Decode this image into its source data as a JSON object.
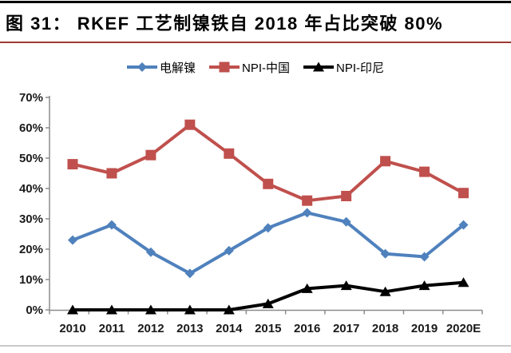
{
  "header": {
    "title": "图 31： RKEF 工艺制镍铁自 2018 年占比突破 80%"
  },
  "colors": {
    "top_rule": "#000000",
    "title_underline": "#9c3a32",
    "axis": "#8c8c8c",
    "tick_label": "#1a1a1a",
    "bottom_rule": "#c9c9c9"
  },
  "chart_data": {
    "type": "line",
    "title": "",
    "xlabel": "",
    "ylabel": "",
    "categories": [
      "2010",
      "2011",
      "2012",
      "2013",
      "2014",
      "2015",
      "2016",
      "2017",
      "2018",
      "2019",
      "2020E"
    ],
    "series": [
      {
        "name": "电解镍",
        "key": "electrolytic-nickel",
        "color": "#4F81BD",
        "marker": "diamond",
        "values": [
          23,
          28,
          19,
          12,
          19.5,
          27,
          32,
          29,
          18.5,
          17.5,
          28
        ]
      },
      {
        "name": "NPI-中国",
        "key": "npi-china",
        "color": "#C0504D",
        "marker": "square",
        "values": [
          48,
          45,
          51,
          61,
          51.5,
          41.5,
          36,
          37.5,
          49,
          45.5,
          38.5
        ]
      },
      {
        "name": "NPI-印尼",
        "key": "npi-indonesia",
        "color": "#000000",
        "marker": "triangle",
        "values": [
          0,
          0,
          0,
          0,
          0,
          2,
          7,
          8,
          6,
          8,
          9
        ]
      }
    ],
    "ylim": [
      0,
      70
    ],
    "ytick_step": 10,
    "ytick_labels": [
      "0%",
      "10%",
      "20%",
      "30%",
      "40%",
      "50%",
      "60%",
      "70%"
    ],
    "grid": false,
    "legend_position": "top-center"
  }
}
